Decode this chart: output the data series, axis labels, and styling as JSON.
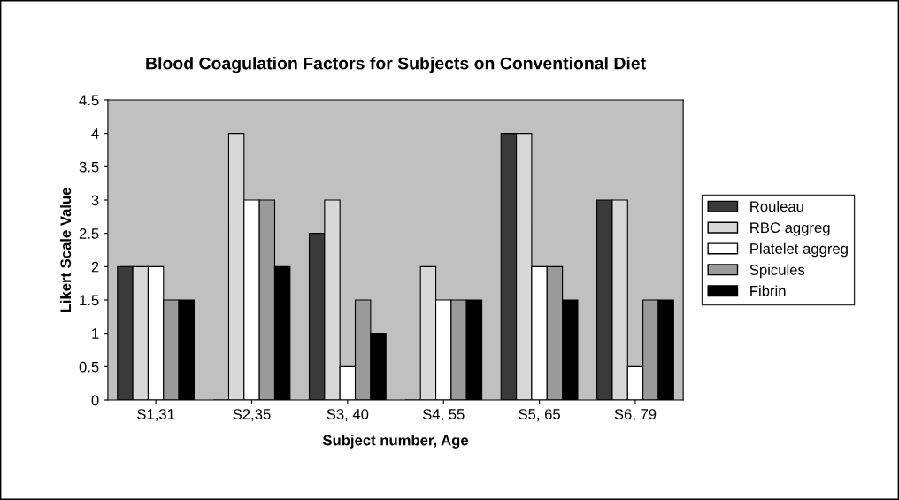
{
  "chart_data": {
    "type": "bar",
    "title": "Blood Coagulation Factors for Subjects on Conventional Diet",
    "xlabel": "Subject number, Age",
    "ylabel": "Likert Scale Value",
    "categories": [
      "S1,31",
      "S2,35",
      "S3, 40",
      "S4, 55",
      "S5, 65",
      "S6, 79"
    ],
    "series": [
      {
        "name": "Rouleau",
        "color": "#3a3a3a",
        "values": [
          2,
          0,
          2.5,
          0,
          4,
          3
        ]
      },
      {
        "name": "RBC aggreg",
        "color": "#d8d8d8",
        "values": [
          2,
          4,
          3,
          2,
          4,
          3
        ]
      },
      {
        "name": "Platelet aggreg",
        "color": "#ffffff",
        "values": [
          2,
          3,
          0.5,
          1.5,
          2,
          0.5
        ]
      },
      {
        "name": "Spicules",
        "color": "#9a9a9a",
        "values": [
          1.5,
          3,
          1.5,
          1.5,
          2,
          1.5
        ]
      },
      {
        "name": "Fibrin",
        "color": "#000000",
        "values": [
          1.5,
          2,
          1,
          1.5,
          1.5,
          1.5
        ]
      }
    ],
    "ylim": [
      0,
      4.5
    ],
    "yticks": [
      0,
      0.5,
      1,
      1.5,
      2,
      2.5,
      3,
      3.5,
      4,
      4.5
    ],
    "grid": false,
    "legend": "right"
  }
}
